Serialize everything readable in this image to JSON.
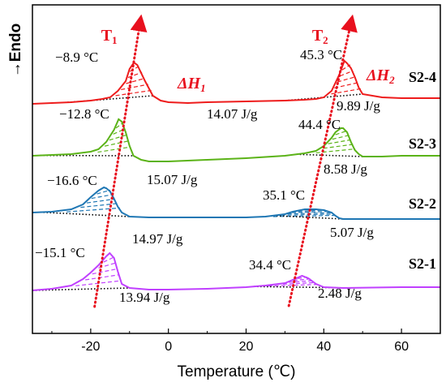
{
  "chart_data": {
    "type": "line",
    "title": "",
    "xlabel": "Temperature (℃)",
    "ylabel": "→Endo",
    "xlim": [
      -35,
      70
    ],
    "x_ticks": [
      -20,
      0,
      20,
      40,
      60
    ],
    "x_tick_labels": [
      "-20",
      "0",
      "20",
      "40",
      "60"
    ],
    "grid": false,
    "series": [
      {
        "name": "S2-4",
        "color": "#ee1c1c",
        "x": [
          -35,
          -30,
          -25,
          -20,
          -17,
          -15,
          -13,
          -11,
          -10,
          -9,
          -8.9,
          -8,
          -6,
          -4,
          -2,
          0,
          5,
          10,
          20,
          30,
          35,
          38,
          40,
          42,
          44,
          45.3,
          46,
          47,
          48,
          49,
          50,
          55,
          60,
          70
        ],
        "y": [
          128,
          127,
          126,
          124,
          122,
          120,
          112,
          100,
          85,
          78,
          77,
          80,
          100,
          118,
          124,
          126,
          127,
          126,
          125,
          124,
          123,
          122,
          120,
          112,
          92,
          75,
          78,
          84,
          95,
          108,
          116,
          120,
          121,
          121
        ]
      },
      {
        "name": "S2-3",
        "color": "#5bb318",
        "x": [
          -35,
          -30,
          -25,
          -20,
          -18,
          -16,
          -14,
          -12.8,
          -12,
          -11,
          -10,
          -9,
          -7,
          -5,
          0,
          10,
          20,
          30,
          35,
          38,
          40,
          42,
          43,
          44.4,
          45,
          46,
          47,
          48,
          49,
          50,
          55,
          60,
          70
        ],
        "y": [
          192,
          191,
          190,
          187,
          184,
          175,
          160,
          147,
          150,
          163,
          180,
          192,
          197,
          199,
          199,
          197,
          195,
          192,
          189,
          186,
          180,
          170,
          163,
          158,
          158,
          163,
          175,
          185,
          190,
          193,
          193,
          192,
          192
        ]
      },
      {
        "name": "S2-2",
        "color": "#1f77b4",
        "x": [
          -35,
          -30,
          -25,
          -22,
          -20,
          -18,
          -16.6,
          -16,
          -15,
          -14,
          -13,
          -12,
          -10,
          -5,
          0,
          10,
          20,
          25,
          30,
          32,
          35.1,
          38,
          40,
          42,
          43,
          44,
          45,
          50,
          60,
          70
        ],
        "y": [
          262,
          261,
          258,
          252,
          243,
          235,
          231,
          232,
          236,
          245,
          255,
          262,
          267,
          268,
          268,
          268,
          268,
          267,
          264,
          261,
          258,
          258,
          259,
          262,
          266,
          269,
          270,
          270,
          270,
          270
        ]
      },
      {
        "name": "S2-1",
        "color": "#c040ff",
        "x": [
          -35,
          -30,
          -25,
          -22,
          -20,
          -18,
          -16,
          -15.1,
          -14,
          -13,
          -12,
          -10,
          -5,
          0,
          10,
          20,
          25,
          30,
          32,
          34.4,
          36,
          38,
          40,
          45,
          60,
          70
        ],
        "y": [
          358,
          356,
          352,
          344,
          336,
          327,
          316,
          312,
          318,
          335,
          350,
          355,
          357,
          357,
          356,
          354,
          352,
          349,
          345,
          340,
          343,
          350,
          354,
          355,
          354,
          354
        ]
      }
    ],
    "peak_labels": [
      {
        "text": "−8.9 °C",
        "x": -8.9,
        "series": "S2-4"
      },
      {
        "text": "45.3 °C",
        "x": 45.3,
        "series": "S2-4"
      },
      {
        "text": "−12.8 °C",
        "x": -12.8,
        "series": "S2-3"
      },
      {
        "text": "44.4 °C",
        "x": 44.4,
        "series": "S2-3"
      },
      {
        "text": "−16.6 °C",
        "x": -16.6,
        "series": "S2-2"
      },
      {
        "text": "35.1 °C",
        "x": 35.1,
        "series": "S2-2"
      },
      {
        "text": "−15.1 °C",
        "x": -15.1,
        "series": "S2-1"
      },
      {
        "text": "34.4 °C",
        "x": 34.4,
        "series": "S2-1"
      }
    ],
    "enthalpy_labels": [
      {
        "text": "14.07 J/g",
        "series": "S2-4",
        "peak": 1
      },
      {
        "text": "9.89 J/g",
        "series": "S2-4",
        "peak": 2
      },
      {
        "text": "15.07 J/g",
        "series": "S2-3",
        "peak": 1
      },
      {
        "text": "8.58 J/g",
        "series": "S2-3",
        "peak": 2
      },
      {
        "text": "14.97 J/g",
        "series": "S2-2",
        "peak": 1
      },
      {
        "text": "5.07 J/g",
        "series": "S2-2",
        "peak": 2
      },
      {
        "text": "13.94 J/g",
        "series": "S2-1",
        "peak": 1
      },
      {
        "text": "2.48 J/g",
        "series": "S2-1",
        "peak": 2
      }
    ],
    "series_labels": [
      "S2-4",
      "S2-3",
      "S2-2",
      "S2-1"
    ],
    "trend_lines": [
      {
        "label": "T",
        "sub": "1",
        "color": "#e8101e"
      },
      {
        "label": "T",
        "sub": "2",
        "color": "#e8101e"
      }
    ],
    "enthalpy_symbols": [
      {
        "symbol": "ΔH",
        "sub": "1",
        "color": "#e8101e"
      },
      {
        "symbol": "ΔH",
        "sub": "2",
        "color": "#e8101e"
      }
    ]
  }
}
